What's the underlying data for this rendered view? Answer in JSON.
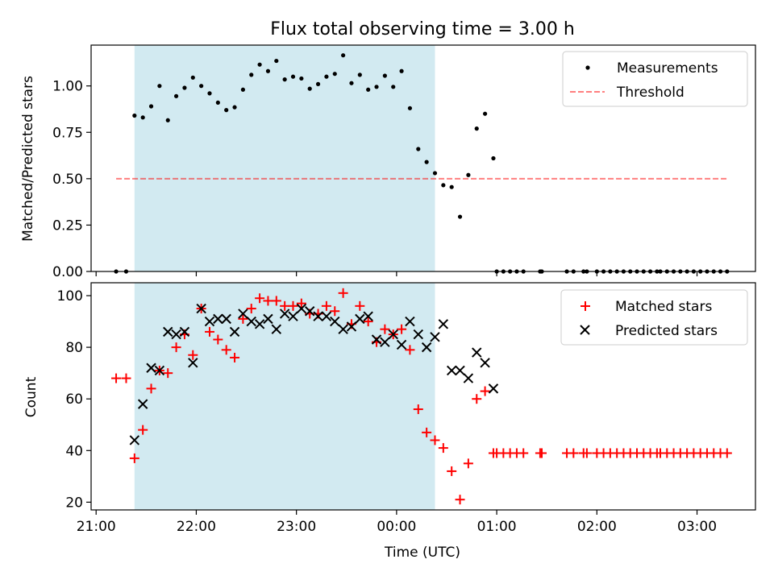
{
  "title": "Flux total observing time = 3.00 h",
  "colors": {
    "shade": "#add8e6",
    "measurement": "#000000",
    "threshold": "#ff0000",
    "matched": "#ff0000",
    "predicted": "#000000"
  },
  "chart_data": [
    {
      "type": "scatter",
      "panel": "top",
      "ylabel": "Matched/Predicted stars",
      "xlabel": "",
      "ylim": [
        0,
        1.22
      ],
      "yticks": [
        0.0,
        0.25,
        0.5,
        0.75,
        1.0
      ],
      "ytick_labels": [
        "0.00",
        "0.25",
        "0.50",
        "0.75",
        "1.00"
      ],
      "shaded_span": [
        "21:23",
        "00:23"
      ],
      "legend": {
        "placement": "upper right",
        "entries": [
          "Measurements",
          "Threshold"
        ]
      },
      "threshold": {
        "name": "Threshold",
        "y": 0.5,
        "x_range": [
          "21:12",
          "03:18"
        ],
        "style": "dashed"
      },
      "series": [
        {
          "name": "Measurements",
          "marker": "dot",
          "points": [
            [
              "21:12",
              0.0
            ],
            [
              "21:18",
              0.0
            ],
            [
              "21:23",
              0.84
            ],
            [
              "21:28",
              0.83
            ],
            [
              "21:33",
              0.89
            ],
            [
              "21:38",
              1.0
            ],
            [
              "21:43",
              0.815
            ],
            [
              "21:48",
              0.945
            ],
            [
              "21:53",
              0.99
            ],
            [
              "21:58",
              1.045
            ],
            [
              "22:03",
              1.0
            ],
            [
              "22:08",
              0.96
            ],
            [
              "22:13",
              0.91
            ],
            [
              "22:18",
              0.87
            ],
            [
              "22:23",
              0.885
            ],
            [
              "22:28",
              0.98
            ],
            [
              "22:33",
              1.06
            ],
            [
              "22:38",
              1.115
            ],
            [
              "22:43",
              1.08
            ],
            [
              "22:48",
              1.135
            ],
            [
              "22:53",
              1.035
            ],
            [
              "22:58",
              1.05
            ],
            [
              "23:03",
              1.04
            ],
            [
              "23:08",
              0.985
            ],
            [
              "23:13",
              1.01
            ],
            [
              "23:18",
              1.05
            ],
            [
              "23:23",
              1.065
            ],
            [
              "23:28",
              1.165
            ],
            [
              "23:33",
              1.015
            ],
            [
              "23:38",
              1.06
            ],
            [
              "23:43",
              0.98
            ],
            [
              "23:48",
              0.995
            ],
            [
              "23:53",
              1.055
            ],
            [
              "23:58",
              0.995
            ],
            [
              "00:03",
              1.08
            ],
            [
              "00:08",
              0.88
            ],
            [
              "00:13",
              0.66
            ],
            [
              "00:18",
              0.59
            ],
            [
              "00:23",
              0.53
            ],
            [
              "00:28",
              0.465
            ],
            [
              "00:33",
              0.455
            ],
            [
              "00:38",
              0.295
            ],
            [
              "00:43",
              0.52
            ],
            [
              "00:48",
              0.77
            ],
            [
              "00:53",
              0.85
            ],
            [
              "00:58",
              0.61
            ],
            [
              "01:00",
              0.0
            ],
            [
              "01:04",
              0.0
            ],
            [
              "01:08",
              0.0
            ],
            [
              "01:12",
              0.0
            ],
            [
              "01:16",
              0.0
            ],
            [
              "01:26",
              0.0
            ],
            [
              "01:27",
              0.0
            ],
            [
              "01:42",
              0.0
            ],
            [
              "01:46",
              0.0
            ],
            [
              "01:52",
              0.0
            ],
            [
              "01:54",
              0.0
            ],
            [
              "02:00",
              0.0
            ],
            [
              "02:04",
              0.0
            ],
            [
              "02:08",
              0.0
            ],
            [
              "02:12",
              0.0
            ],
            [
              "02:16",
              0.0
            ],
            [
              "02:20",
              0.0
            ],
            [
              "02:24",
              0.0
            ],
            [
              "02:28",
              0.0
            ],
            [
              "02:32",
              0.0
            ],
            [
              "02:36",
              0.0
            ],
            [
              "02:38",
              0.0
            ],
            [
              "02:42",
              0.0
            ],
            [
              "02:46",
              0.0
            ],
            [
              "02:50",
              0.0
            ],
            [
              "02:54",
              0.0
            ],
            [
              "02:58",
              0.0
            ],
            [
              "03:02",
              0.0
            ],
            [
              "03:06",
              0.0
            ],
            [
              "03:10",
              0.0
            ],
            [
              "03:14",
              0.0
            ],
            [
              "03:18",
              0.0
            ]
          ]
        }
      ]
    },
    {
      "type": "scatter",
      "panel": "bottom",
      "ylabel": "Count",
      "xlabel": "Time (UTC)",
      "ylim": [
        17,
        105
      ],
      "yticks": [
        20,
        40,
        60,
        80,
        100
      ],
      "ytick_labels": [
        "20",
        "40",
        "60",
        "80",
        "100"
      ],
      "xlim": [
        "20:57",
        "03:35"
      ],
      "xticks": [
        "21:00",
        "22:00",
        "23:00",
        "00:00",
        "01:00",
        "02:00",
        "03:00"
      ],
      "xtick_labels": [
        "21:00",
        "22:00",
        "23:00",
        "00:00",
        "01:00",
        "02:00",
        "03:00"
      ],
      "shaded_span": [
        "21:23",
        "00:23"
      ],
      "legend": {
        "placement": "upper right",
        "entries": [
          "Matched stars",
          "Predicted stars"
        ]
      },
      "series": [
        {
          "name": "Matched stars",
          "marker": "plus",
          "points": [
            [
              "21:12",
              68
            ],
            [
              "21:18",
              68
            ],
            [
              "21:23",
              37
            ],
            [
              "21:28",
              48
            ],
            [
              "21:33",
              64
            ],
            [
              "21:38",
              71
            ],
            [
              "21:43",
              70
            ],
            [
              "21:48",
              80
            ],
            [
              "21:53",
              85
            ],
            [
              "21:58",
              77
            ],
            [
              "22:03",
              95
            ],
            [
              "22:08",
              86
            ],
            [
              "22:13",
              83
            ],
            [
              "22:18",
              79
            ],
            [
              "22:23",
              76
            ],
            [
              "22:28",
              91
            ],
            [
              "22:33",
              95
            ],
            [
              "22:38",
              99
            ],
            [
              "22:43",
              98
            ],
            [
              "22:48",
              98
            ],
            [
              "22:53",
              96
            ],
            [
              "22:58",
              96
            ],
            [
              "23:03",
              97
            ],
            [
              "23:08",
              93
            ],
            [
              "23:13",
              93
            ],
            [
              "23:18",
              96
            ],
            [
              "23:23",
              94
            ],
            [
              "23:28",
              101
            ],
            [
              "23:33",
              89
            ],
            [
              "23:38",
              96
            ],
            [
              "23:43",
              90
            ],
            [
              "23:48",
              82
            ],
            [
              "23:53",
              87
            ],
            [
              "23:58",
              85
            ],
            [
              "00:03",
              87
            ],
            [
              "00:08",
              79
            ],
            [
              "00:13",
              56
            ],
            [
              "00:18",
              47
            ],
            [
              "00:23",
              44
            ],
            [
              "00:28",
              41
            ],
            [
              "00:33",
              32
            ],
            [
              "00:38",
              21
            ],
            [
              "00:43",
              35
            ],
            [
              "00:48",
              60
            ],
            [
              "00:53",
              63
            ],
            [
              "00:58",
              39
            ],
            [
              "01:00",
              39
            ],
            [
              "01:04",
              39
            ],
            [
              "01:08",
              39
            ],
            [
              "01:12",
              39
            ],
            [
              "01:16",
              39
            ],
            [
              "01:26",
              39
            ],
            [
              "01:27",
              39
            ],
            [
              "01:42",
              39
            ],
            [
              "01:46",
              39
            ],
            [
              "01:52",
              39
            ],
            [
              "01:54",
              39
            ],
            [
              "02:00",
              39
            ],
            [
              "02:04",
              39
            ],
            [
              "02:08",
              39
            ],
            [
              "02:12",
              39
            ],
            [
              "02:16",
              39
            ],
            [
              "02:20",
              39
            ],
            [
              "02:24",
              39
            ],
            [
              "02:28",
              39
            ],
            [
              "02:32",
              39
            ],
            [
              "02:36",
              39
            ],
            [
              "02:38",
              39
            ],
            [
              "02:42",
              39
            ],
            [
              "02:46",
              39
            ],
            [
              "02:50",
              39
            ],
            [
              "02:54",
              39
            ],
            [
              "02:58",
              39
            ],
            [
              "03:02",
              39
            ],
            [
              "03:06",
              39
            ],
            [
              "03:10",
              39
            ],
            [
              "03:14",
              39
            ],
            [
              "03:18",
              39
            ]
          ]
        },
        {
          "name": "Predicted stars",
          "marker": "x",
          "points": [
            [
              "21:23",
              44
            ],
            [
              "21:28",
              58
            ],
            [
              "21:33",
              72
            ],
            [
              "21:38",
              71
            ],
            [
              "21:43",
              86
            ],
            [
              "21:48",
              85
            ],
            [
              "21:53",
              86
            ],
            [
              "21:58",
              74
            ],
            [
              "22:03",
              95
            ],
            [
              "22:08",
              90
            ],
            [
              "22:13",
              91
            ],
            [
              "22:18",
              91
            ],
            [
              "22:23",
              86
            ],
            [
              "22:28",
              93
            ],
            [
              "22:33",
              90
            ],
            [
              "22:38",
              89
            ],
            [
              "22:43",
              91
            ],
            [
              "22:48",
              87
            ],
            [
              "22:53",
              93
            ],
            [
              "22:58",
              92
            ],
            [
              "23:03",
              95
            ],
            [
              "23:08",
              94
            ],
            [
              "23:13",
              92
            ],
            [
              "23:18",
              92
            ],
            [
              "23:23",
              90
            ],
            [
              "23:28",
              87
            ],
            [
              "23:33",
              88
            ],
            [
              "23:38",
              91
            ],
            [
              "23:43",
              92
            ],
            [
              "23:48",
              83
            ],
            [
              "23:53",
              82
            ],
            [
              "23:58",
              85
            ],
            [
              "00:03",
              81
            ],
            [
              "00:08",
              90
            ],
            [
              "00:13",
              85
            ],
            [
              "00:18",
              80
            ],
            [
              "00:23",
              84
            ],
            [
              "00:28",
              89
            ],
            [
              "00:33",
              71
            ],
            [
              "00:38",
              71
            ],
            [
              "00:43",
              68
            ],
            [
              "00:48",
              78
            ],
            [
              "00:53",
              74
            ],
            [
              "00:58",
              64
            ]
          ]
        }
      ]
    }
  ]
}
